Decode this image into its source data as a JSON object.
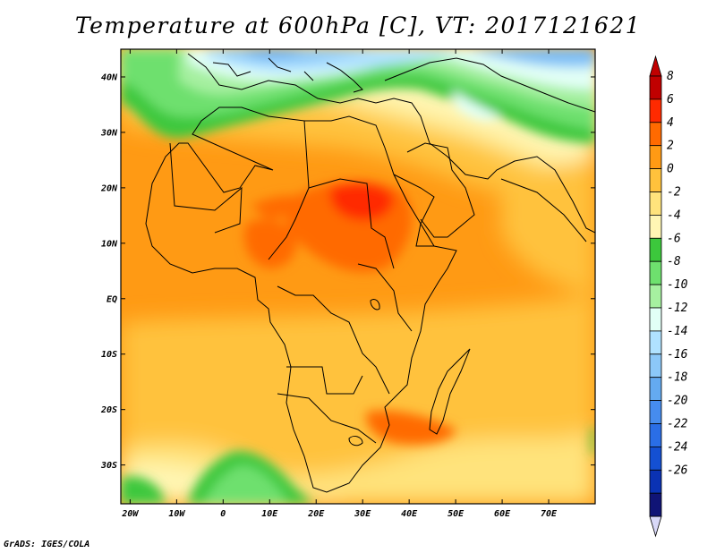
{
  "title": "Temperature at 600hPa [C], VT: 2017121621",
  "credit": "GrADS: IGES/COLA",
  "map": {
    "lon_labels": [
      "20W",
      "10W",
      "0",
      "10E",
      "20E",
      "30E",
      "40E",
      "50E",
      "60E",
      "70E"
    ],
    "lat_labels": [
      "40N",
      "30N",
      "20N",
      "10N",
      "EQ",
      "10S",
      "20S",
      "30S"
    ],
    "lon_range": [
      -22,
      80
    ],
    "lat_range": [
      -37,
      45
    ]
  },
  "colorbar": {
    "labels": [
      "8",
      "6",
      "4",
      "2",
      "0",
      "-2",
      "-4",
      "-6",
      "-8",
      "-10",
      "-12",
      "-14",
      "-16",
      "-18",
      "-20",
      "-22",
      "-24",
      "-26"
    ],
    "colors": [
      "#c00000",
      "#ff2a00",
      "#ff6a00",
      "#ff9a14",
      "#ffc23c",
      "#ffe37c",
      "#fff6b4",
      "#3cc83c",
      "#6ee06e",
      "#a6f0a0",
      "#e2fff6",
      "#b0e2ff",
      "#8cc8f8",
      "#64aaf0",
      "#468cee",
      "#2a6ee6",
      "#1450d2",
      "#0a32b4",
      "#101476"
    ],
    "top_arrow_color": "#c00000",
    "bottom_arrow_color": "#d8d8f8"
  }
}
